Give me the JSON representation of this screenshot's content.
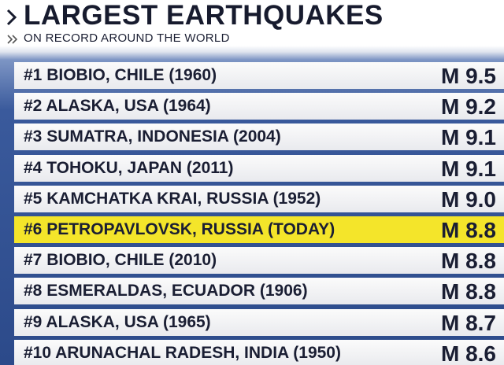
{
  "header": {
    "title": "LARGEST EARTHQUAKES",
    "subtitle": "ON RECORD AROUND THE WORLD"
  },
  "table": {
    "highlight_row": 5,
    "rows": [
      [
        "#1 BIOBIO, CHILE (1960)",
        "M 9.5"
      ],
      [
        "#2 ALASKA, USA (1964)",
        "M 9.2"
      ],
      [
        "#3 SUMATRA, INDONESIA (2004)",
        "M 9.1"
      ],
      [
        "#4 TOHOKU, JAPAN (2011)",
        "M 9.1"
      ],
      [
        "#5 KAMCHATKA KRAI, RUSSIA (1952)",
        "M 9.0"
      ],
      [
        "#6 PETROPAVLOVSK, RUSSIA (TODAY)",
        "M 8.8"
      ],
      [
        "#7 BIOBIO, CHILE (2010)",
        "M 8.8"
      ],
      [
        "#8 ESMERALDAS, ECUADOR (1906)",
        "M 8.8"
      ],
      [
        "#9 ALASKA, USA (1965)",
        "M 8.7"
      ],
      [
        "#10 ARUNACHAL RADESH, INDIA (1950)",
        "M 8.6"
      ]
    ]
  }
}
